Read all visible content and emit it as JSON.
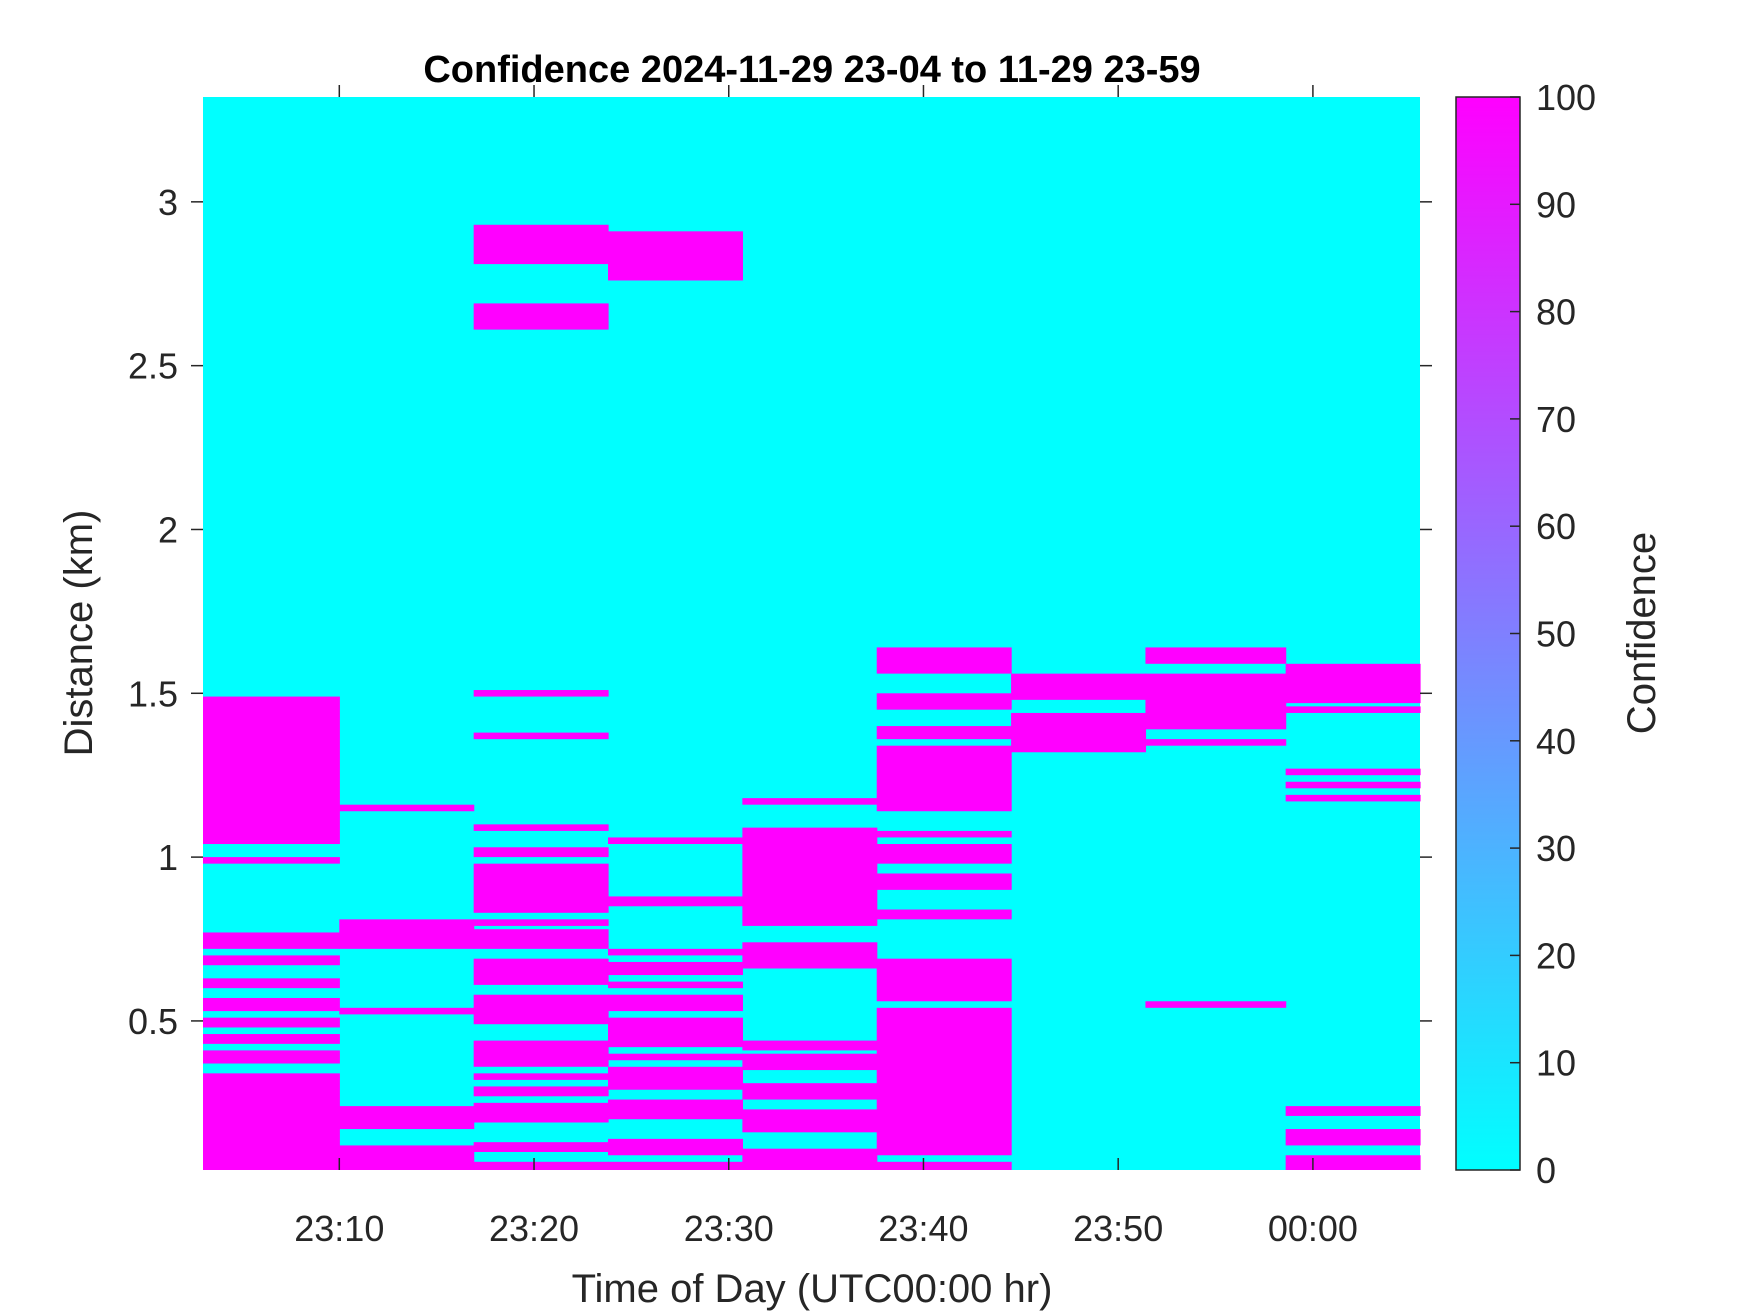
{
  "chart_data": {
    "type": "heatmap",
    "title": "Confidence 2024-11-29 23-04 to 11-29 23-59",
    "xlabel": "Time of Day (UTC00:00 hr)",
    "ylabel": "Distance (km)",
    "colorbar_label": "Confidence",
    "x_tick_labels": [
      "23:10",
      "23:20",
      "23:30",
      "23:40",
      "23:50",
      "00:00"
    ],
    "x_tick_minutes": [
      10,
      20,
      30,
      40,
      50,
      60
    ],
    "y_ticks": [
      0.5,
      1,
      1.5,
      2,
      2.5,
      3
    ],
    "y_tick_labels": [
      "0.5",
      "1",
      "1.5",
      "2",
      "2.5",
      "3"
    ],
    "colorbar_ticks": [
      0,
      10,
      20,
      30,
      40,
      50,
      60,
      70,
      80,
      90,
      100
    ],
    "colorbar_tick_labels": [
      "0",
      "10",
      "20",
      "30",
      "40",
      "50",
      "60",
      "70",
      "80",
      "90",
      "100"
    ],
    "clim": [
      0,
      100
    ],
    "colormap": [
      "#00ffff",
      "#ff00ff"
    ],
    "xlim_minutes": [
      3,
      65.5
    ],
    "ylim": [
      0.045,
      3.32
    ],
    "background_value": 0,
    "grid": false,
    "columns": [
      {
        "x_start_minutes": 3.0,
        "x_end_minutes": 10.0,
        "high_bands_km": [
          [
            0.045,
            0.34
          ],
          [
            0.37,
            0.41
          ],
          [
            0.43,
            0.46
          ],
          [
            0.48,
            0.51
          ],
          [
            0.53,
            0.57
          ],
          [
            0.6,
            0.63
          ],
          [
            0.67,
            0.7
          ],
          [
            0.72,
            0.77
          ],
          [
            0.98,
            1.0
          ],
          [
            1.04,
            1.49
          ]
        ]
      },
      {
        "x_start_minutes": 10.0,
        "x_end_minutes": 16.9,
        "high_bands_km": [
          [
            0.045,
            0.12
          ],
          [
            0.17,
            0.24
          ],
          [
            0.52,
            0.54
          ],
          [
            0.72,
            0.81
          ],
          [
            1.14,
            1.16
          ]
        ]
      },
      {
        "x_start_minutes": 16.9,
        "x_end_minutes": 23.8,
        "high_bands_km": [
          [
            0.045,
            0.07
          ],
          [
            0.1,
            0.13
          ],
          [
            0.19,
            0.25
          ],
          [
            0.27,
            0.3
          ],
          [
            0.32,
            0.34
          ],
          [
            0.36,
            0.44
          ],
          [
            0.49,
            0.58
          ],
          [
            0.61,
            0.69
          ],
          [
            0.72,
            0.78
          ],
          [
            0.79,
            0.81
          ],
          [
            0.83,
            0.98
          ],
          [
            1.0,
            1.03
          ],
          [
            1.08,
            1.1
          ],
          [
            1.36,
            1.38
          ],
          [
            1.49,
            1.51
          ],
          [
            2.61,
            2.69
          ],
          [
            2.81,
            2.93
          ]
        ]
      },
      {
        "x_start_minutes": 23.8,
        "x_end_minutes": 30.7,
        "high_bands_km": [
          [
            0.045,
            0.07
          ],
          [
            0.09,
            0.14
          ],
          [
            0.2,
            0.26
          ],
          [
            0.29,
            0.36
          ],
          [
            0.38,
            0.4
          ],
          [
            0.42,
            0.51
          ],
          [
            0.53,
            0.58
          ],
          [
            0.6,
            0.62
          ],
          [
            0.64,
            0.68
          ],
          [
            0.7,
            0.72
          ],
          [
            0.85,
            0.88
          ],
          [
            1.04,
            1.06
          ],
          [
            2.76,
            2.91
          ]
        ]
      },
      {
        "x_start_minutes": 30.7,
        "x_end_minutes": 37.6,
        "high_bands_km": [
          [
            0.045,
            0.11
          ],
          [
            0.16,
            0.23
          ],
          [
            0.26,
            0.31
          ],
          [
            0.35,
            0.4
          ],
          [
            0.41,
            0.44
          ],
          [
            0.66,
            0.74
          ],
          [
            0.79,
            1.09
          ],
          [
            1.16,
            1.18
          ]
        ]
      },
      {
        "x_start_minutes": 37.6,
        "x_end_minutes": 44.5,
        "high_bands_km": [
          [
            0.045,
            0.07
          ],
          [
            0.09,
            0.54
          ],
          [
            0.56,
            0.69
          ],
          [
            0.81,
            0.84
          ],
          [
            0.9,
            0.95
          ],
          [
            0.98,
            1.04
          ],
          [
            1.06,
            1.08
          ],
          [
            1.14,
            1.34
          ],
          [
            1.36,
            1.4
          ],
          [
            1.45,
            1.5
          ],
          [
            1.56,
            1.64
          ]
        ]
      },
      {
        "x_start_minutes": 44.5,
        "x_end_minutes": 51.4,
        "high_bands_km": [
          [
            1.32,
            1.44
          ],
          [
            1.48,
            1.56
          ]
        ]
      },
      {
        "x_start_minutes": 51.4,
        "x_end_minutes": 58.6,
        "high_bands_km": [
          [
            0.54,
            0.56
          ],
          [
            1.34,
            1.36
          ],
          [
            1.39,
            1.56
          ],
          [
            1.59,
            1.64
          ]
        ]
      },
      {
        "x_start_minutes": 58.6,
        "x_end_minutes": 65.5,
        "high_bands_km": [
          [
            0.045,
            0.09
          ],
          [
            0.12,
            0.17
          ],
          [
            0.21,
            0.24
          ],
          [
            1.17,
            1.19
          ],
          [
            1.21,
            1.23
          ],
          [
            1.25,
            1.27
          ],
          [
            1.44,
            1.46
          ],
          [
            1.47,
            1.59
          ]
        ]
      }
    ]
  }
}
